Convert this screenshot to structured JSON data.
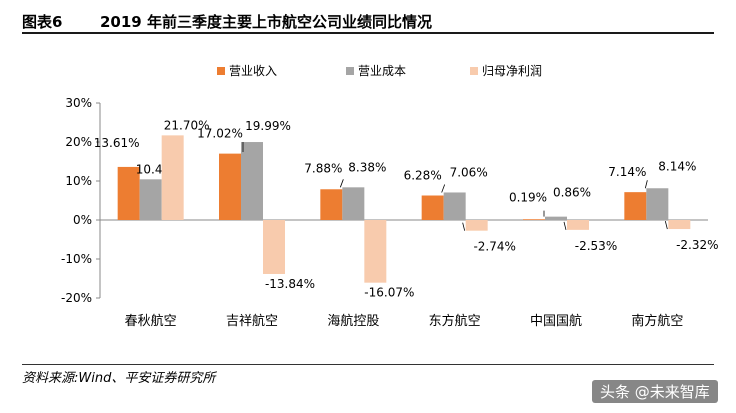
{
  "header": {
    "figure_label": "图表6",
    "title": "2019 年前三季度主要上市航空公司业绩同比情况"
  },
  "source": "资料来源:Wind、平安证券研究所",
  "watermark": "头条 @未来智库",
  "colors": {
    "revenue": "#ED7D31",
    "cost": "#A5A5A5",
    "profit": "#F8CBAD"
  },
  "chart_data": {
    "type": "bar",
    "categories": [
      "春秋航空",
      "吉祥航空",
      "海航控股",
      "东方航空",
      "中国国航",
      "南方航空"
    ],
    "series": [
      {
        "name": "营业收入",
        "values": [
          13.61,
          17.02,
          7.88,
          6.28,
          0.19,
          7.14
        ]
      },
      {
        "name": "营业成本",
        "values": [
          10.43,
          19.99,
          8.38,
          7.06,
          0.86,
          8.14
        ]
      },
      {
        "name": "归母净利润",
        "values": [
          21.7,
          -13.84,
          -16.07,
          -2.74,
          -2.53,
          -2.32
        ]
      }
    ],
    "ylim": [
      -20,
      30
    ],
    "yticks": [
      -20,
      -10,
      0,
      10,
      20,
      30
    ],
    "ytick_labels": [
      "-20%",
      "-10%",
      "0%",
      "10%",
      "20%",
      "30%"
    ],
    "data_labels": [
      [
        "13.61%",
        "17.02%",
        "7.88%",
        "6.28%",
        "0.19%",
        "7.14%"
      ],
      [
        "10.43%",
        "19.99%",
        "8.38%",
        "7.06%",
        "0.86%",
        "8.14%"
      ],
      [
        "21.70%",
        "-13.84%",
        "-16.07%",
        "-2.74%",
        "-2.53%",
        "-2.32%"
      ]
    ],
    "legend_position": "top",
    "grid": false
  }
}
